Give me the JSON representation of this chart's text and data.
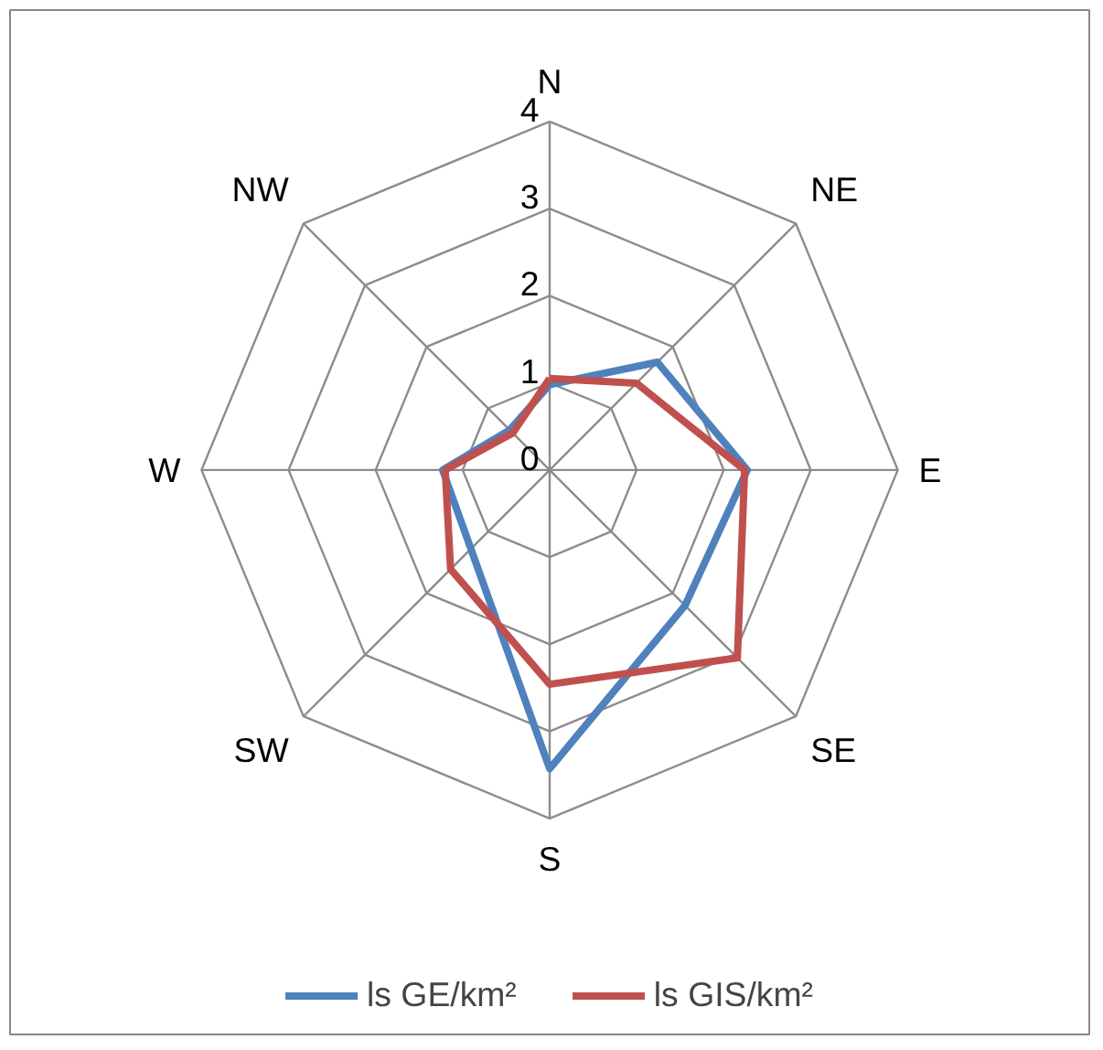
{
  "chart_data": {
    "type": "radar",
    "categories": [
      "N",
      "NE",
      "E",
      "SE",
      "S",
      "SW",
      "W",
      "NW"
    ],
    "ylim": [
      0,
      4
    ],
    "yticks": [
      0,
      1,
      2,
      3,
      4
    ],
    "grid": true,
    "legend": "bottom",
    "line_style": "solid",
    "marker": "none",
    "series": [
      {
        "name": "ls GE/km²",
        "color": "#4f81bd",
        "values": [
          0.98,
          1.75,
          2.27,
          2.2,
          3.43,
          1.28,
          1.23,
          0.65
        ]
      },
      {
        "name": "ls GIS/km²",
        "color": "#c0504d",
        "values": [
          1.05,
          1.41,
          2.24,
          3.05,
          2.46,
          1.61,
          1.2,
          0.6
        ]
      }
    ]
  }
}
